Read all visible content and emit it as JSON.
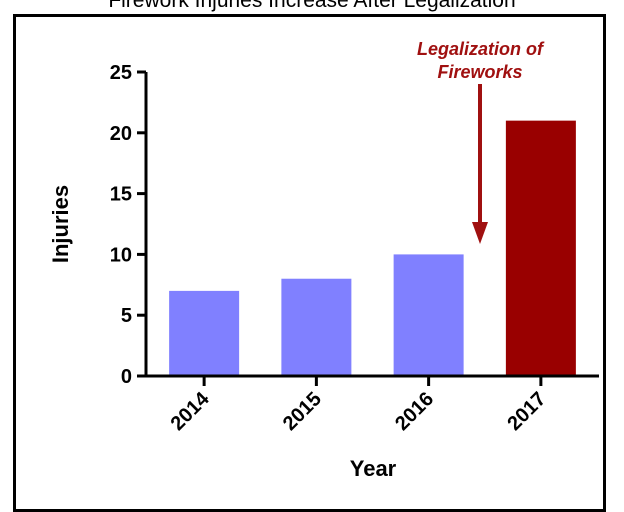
{
  "header": {
    "title": "Firework Injuries Increase After Legalization"
  },
  "chart_data": {
    "type": "bar",
    "title": "Firework Injuries Increase After Legalization",
    "xlabel": "Year",
    "ylabel": "Injuries",
    "categories": [
      "2014",
      "2015",
      "2016",
      "2017"
    ],
    "values": [
      7,
      8,
      10,
      21
    ],
    "ylim": [
      0,
      25
    ],
    "yticks": [
      "0",
      "5",
      "10",
      "15",
      "20",
      "25"
    ],
    "bar_colors": [
      "#8080ff",
      "#8080ff",
      "#8080ff",
      "#990000"
    ],
    "grid": false,
    "annotation": {
      "line1": "Legalization of",
      "line2": "Fireworks",
      "color": "#a01010",
      "target_category": "2017"
    }
  }
}
